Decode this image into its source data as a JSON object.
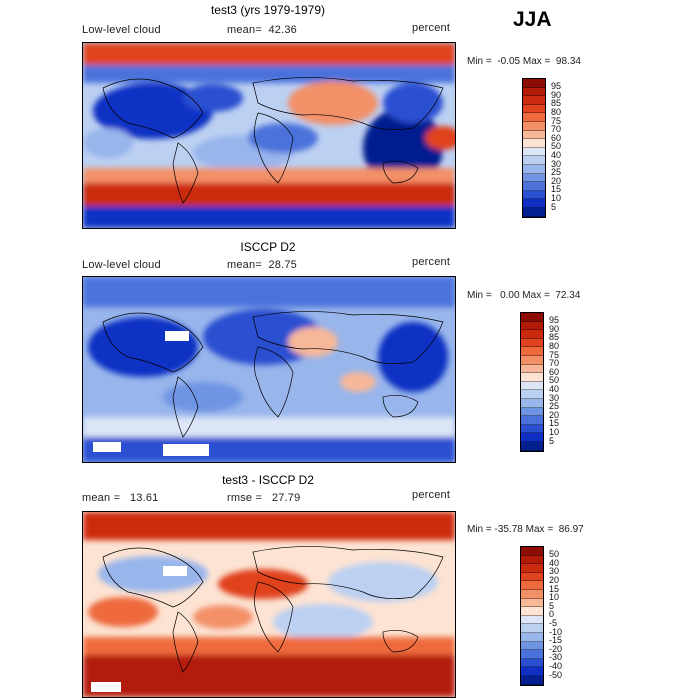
{
  "season": "JJA",
  "panels": [
    {
      "title": "test3 (yrs 1979-1979)",
      "left_label": "Low-level cloud",
      "center_label": "mean=  42.36",
      "right_label": "percent",
      "minmax": "Min =  -0.05 Max =  98.34",
      "colorbar_labels": [
        "95",
        "90",
        "85",
        "80",
        "75",
        "70",
        "60",
        "50",
        "40",
        "30",
        "25",
        "20",
        "15",
        "10",
        "5"
      ],
      "colorbar_colors": [
        "#8c0d04",
        "#b31a08",
        "#cc2a0e",
        "#e0431d",
        "#ee6a3d",
        "#f39068",
        "#f7b799",
        "#fde3d3",
        "#dde6f7",
        "#bcd0f2",
        "#98b5ec",
        "#6f94e4",
        "#4b72db",
        "#2a4fd1",
        "#1030c4",
        "#041f8f"
      ]
    },
    {
      "title": "ISCCP D2",
      "left_label": "Low-level cloud",
      "center_label": "mean=  28.75",
      "right_label": "percent",
      "minmax": "Min =   0.00 Max =  72.34",
      "colorbar_labels": [
        "95",
        "90",
        "85",
        "80",
        "75",
        "70",
        "60",
        "50",
        "40",
        "30",
        "25",
        "20",
        "15",
        "10",
        "5"
      ],
      "colorbar_colors": [
        "#8c0d04",
        "#b31a08",
        "#cc2a0e",
        "#e0431d",
        "#ee6a3d",
        "#f39068",
        "#f7b799",
        "#fde3d3",
        "#dde6f7",
        "#bcd0f2",
        "#98b5ec",
        "#6f94e4",
        "#4b72db",
        "#2a4fd1",
        "#1030c4",
        "#041f8f"
      ]
    },
    {
      "title": "test3 - ISCCP D2",
      "left_label": "mean =   13.61",
      "center_label": "rmse =   27.79",
      "right_label": "percent",
      "minmax": "Min = -35.78 Max =  86.97",
      "colorbar_labels": [
        "50",
        "40",
        "30",
        "20",
        "15",
        "10",
        "5",
        "0",
        "-5",
        "-10",
        "-15",
        "-20",
        "-30",
        "-40",
        "-50"
      ],
      "colorbar_colors": [
        "#8c0d04",
        "#b31a08",
        "#cc2a0e",
        "#e0431d",
        "#ee6a3d",
        "#f39068",
        "#f7b799",
        "#fde3d3",
        "#dde6f7",
        "#bcd0f2",
        "#98b5ec",
        "#6f94e4",
        "#4b72db",
        "#2a4fd1",
        "#1030c4",
        "#041f8f"
      ]
    }
  ]
}
